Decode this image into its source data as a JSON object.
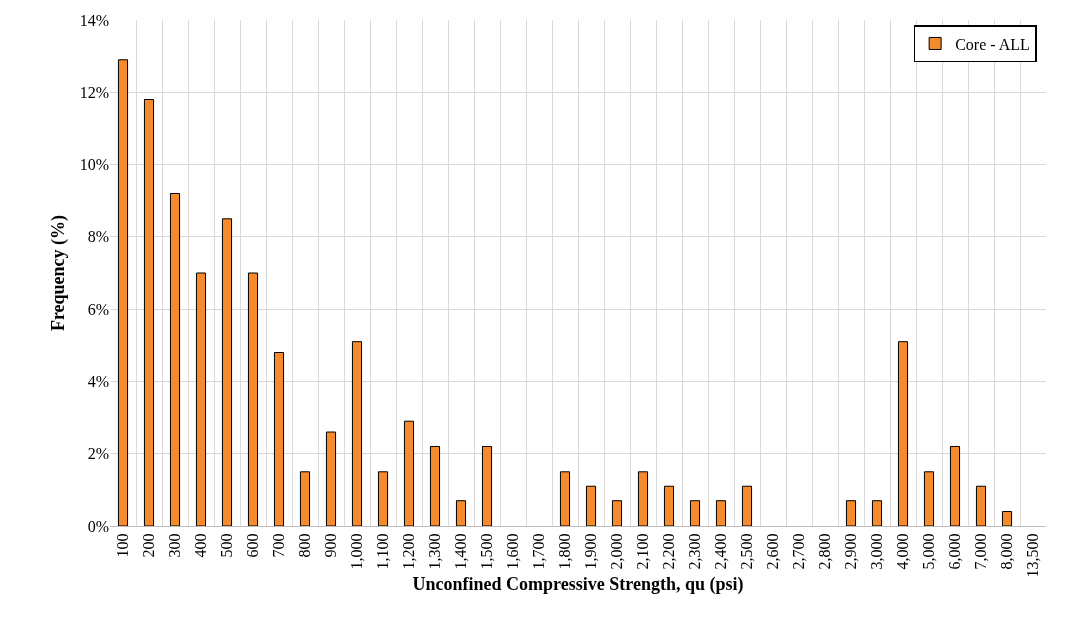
{
  "chart_data": {
    "type": "bar",
    "xlabel": "Unconfined Compressive Strength, qu (psi)",
    "ylabel": "Frequency (%)",
    "categories": [
      "100",
      "200",
      "300",
      "400",
      "500",
      "600",
      "700",
      "800",
      "900",
      "1,000",
      "1,100",
      "1,200",
      "1,300",
      "1,400",
      "1,500",
      "1,600",
      "1,700",
      "1,800",
      "1,900",
      "2,000",
      "2,100",
      "2,200",
      "2,300",
      "2,400",
      "2,500",
      "2,600",
      "2,700",
      "2,800",
      "2,900",
      "3,000",
      "4,000",
      "5,000",
      "6,000",
      "7,000",
      "8,000",
      "13,500"
    ],
    "series": [
      {
        "name": "Core - ALL",
        "color": "#f58b2e",
        "values": [
          12.9,
          11.8,
          9.2,
          7.0,
          8.5,
          7.0,
          4.8,
          1.5,
          2.6,
          5.1,
          1.5,
          2.9,
          2.2,
          0.7,
          2.2,
          0,
          0,
          1.5,
          1.1,
          0.7,
          1.5,
          1.1,
          0.7,
          0.7,
          1.1,
          0,
          0,
          0,
          0.7,
          0.7,
          5.1,
          1.5,
          2.2,
          1.1,
          0.4,
          0
        ]
      }
    ],
    "ylim": [
      0,
      14
    ],
    "yticks": [
      {
        "value": 0,
        "label": "0%"
      },
      {
        "value": 2,
        "label": "2%"
      },
      {
        "value": 4,
        "label": "4%"
      },
      {
        "value": 6,
        "label": "6%"
      },
      {
        "value": 8,
        "label": "8%"
      },
      {
        "value": 10,
        "label": "10%"
      },
      {
        "value": 12,
        "label": "12%"
      },
      {
        "value": 14,
        "label": "14%"
      }
    ],
    "grid": true,
    "legend": "top right"
  }
}
